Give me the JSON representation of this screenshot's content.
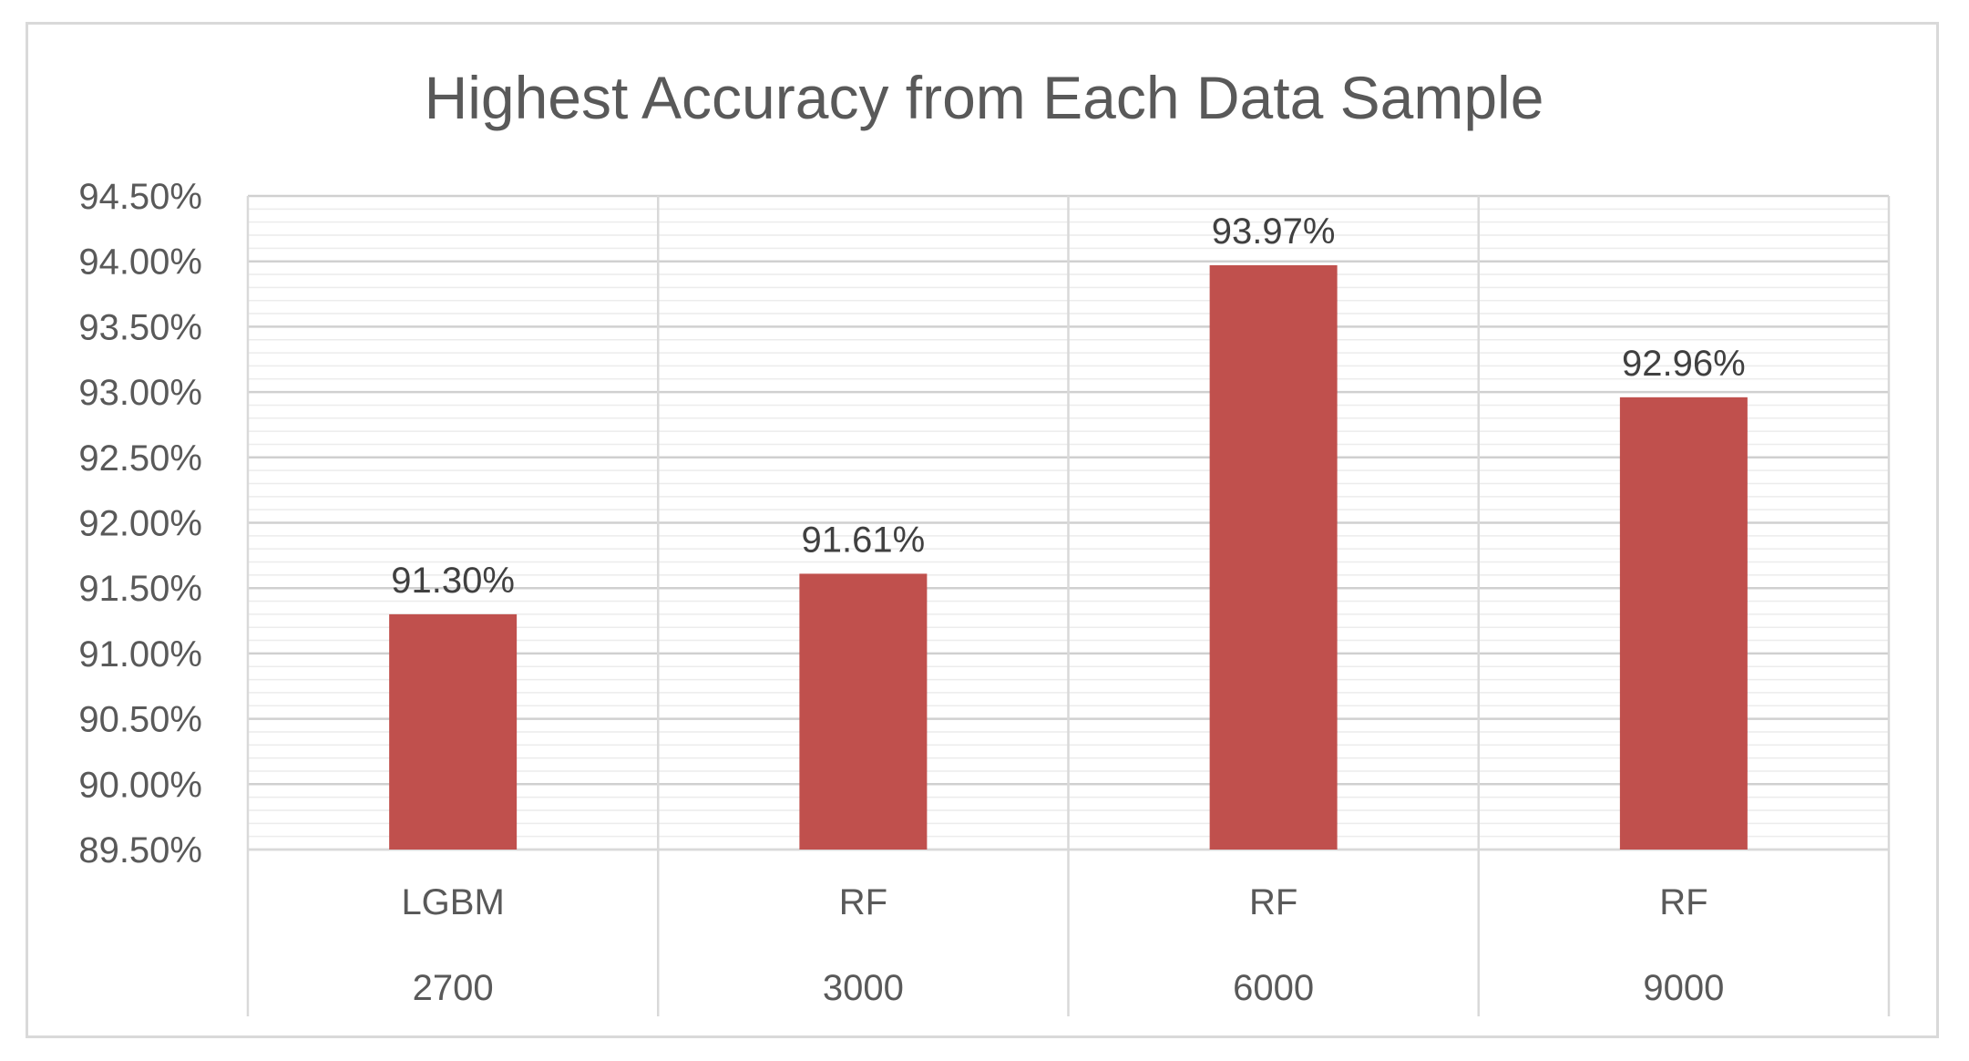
{
  "chart_data": {
    "type": "bar",
    "title": "Highest Accuracy from Each Data Sample",
    "categories": [
      {
        "model": "LGBM",
        "sample": "2700"
      },
      {
        "model": "RF",
        "sample": "3000"
      },
      {
        "model": "RF",
        "sample": "6000"
      },
      {
        "model": "RF",
        "sample": "9000"
      }
    ],
    "values": [
      91.3,
      91.61,
      93.97,
      92.96
    ],
    "data_labels": [
      "91.30%",
      "91.61%",
      "93.97%",
      "92.96%"
    ],
    "ylim": [
      89.5,
      94.5
    ],
    "y_ticks": [
      "89.50%",
      "90.00%",
      "90.50%",
      "91.00%",
      "91.50%",
      "92.00%",
      "92.50%",
      "93.00%",
      "93.50%",
      "94.00%",
      "94.50%"
    ],
    "xlabel": "",
    "ylabel": "",
    "grid": true,
    "legend": "none",
    "bar_color": "#c0504d"
  }
}
